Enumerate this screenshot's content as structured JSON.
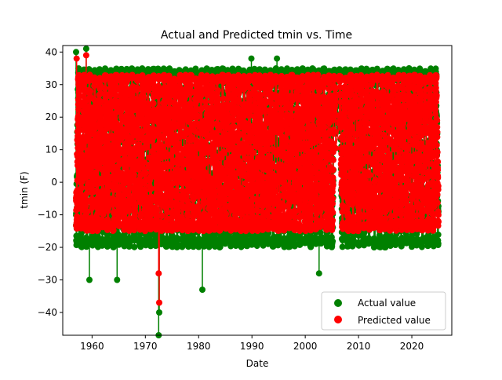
{
  "chart_data": {
    "type": "scatter",
    "title": "Actual and Predicted tmin vs. Time",
    "xlabel": "Date",
    "ylabel": "tmin (F)",
    "x_range": [
      1957,
      2025
    ],
    "xlim": [
      1954.5,
      2027.5
    ],
    "ylim": [
      -47,
      42
    ],
    "x_ticks": [
      "1960",
      "1970",
      "1980",
      "1990",
      "2000",
      "2010",
      "2020"
    ],
    "x_tick_values": [
      1960,
      1970,
      1980,
      1990,
      2000,
      2010,
      2020
    ],
    "y_ticks": [
      "−40",
      "−30",
      "−20",
      "−10",
      "0",
      "10",
      "20",
      "30",
      "40"
    ],
    "y_tick_values": [
      -40,
      -30,
      -20,
      -10,
      0,
      10,
      20,
      30,
      40
    ],
    "grid": false,
    "legend": "lower-right",
    "series": [
      {
        "name": "Actual value",
        "color": "#008000",
        "marker": "circle",
        "connected": true,
        "envelope": {
          "max_typical": 35,
          "min_typical": -20,
          "extremes": [
            {
              "x": 1957.0,
              "y": 40
            },
            {
              "x": 1958.9,
              "y": 41
            },
            {
              "x": 1959.5,
              "y": -30
            },
            {
              "x": 1964.7,
              "y": -30
            },
            {
              "x": 1972.5,
              "y": -47
            },
            {
              "x": 1972.6,
              "y": -40
            },
            {
              "x": 1980.7,
              "y": -33
            },
            {
              "x": 1989.9,
              "y": 38
            },
            {
              "x": 1994.7,
              "y": 38
            },
            {
              "x": 2002.6,
              "y": -28
            }
          ]
        }
      },
      {
        "name": "Predicted value",
        "color": "#ff0000",
        "marker": "circle",
        "connected": true,
        "envelope": {
          "max_typical": 33,
          "min_typical": -15,
          "extremes": [
            {
              "x": 1957.1,
              "y": 38
            },
            {
              "x": 1958.9,
              "y": 39
            },
            {
              "x": 1972.6,
              "y": -37
            },
            {
              "x": 1972.5,
              "y": -28
            }
          ]
        }
      }
    ],
    "data_gap": [
      2005.7,
      2006.4
    ]
  }
}
